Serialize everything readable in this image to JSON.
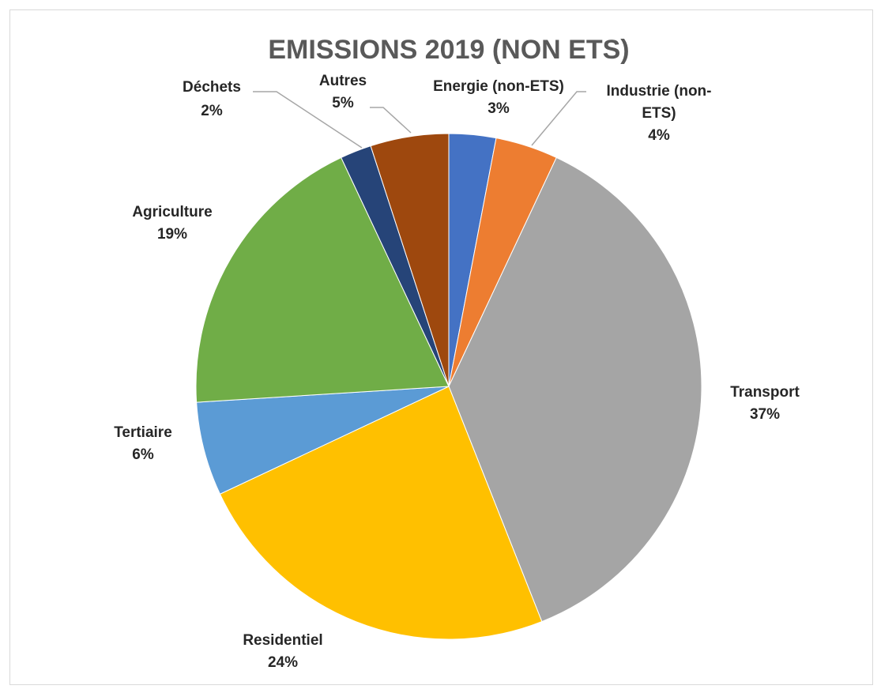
{
  "chart_data": {
    "type": "pie",
    "title": "EMISSIONS 2019 (NON ETS)",
    "slices": [
      {
        "name": "Energie (non-ETS)",
        "value": 3,
        "label": "3%",
        "color": "#4472C4"
      },
      {
        "name": "Industrie (non-ETS)",
        "value": 4,
        "label": "4%",
        "color": "#ED7D31"
      },
      {
        "name": "Transport",
        "value": 37,
        "label": "37%",
        "color": "#A5A5A5"
      },
      {
        "name": "Residentiel",
        "value": 24,
        "label": "24%",
        "color": "#FFC000"
      },
      {
        "name": "Tertiaire",
        "value": 6,
        "label": "6%",
        "color": "#5B9BD5"
      },
      {
        "name": "Agriculture",
        "value": 19,
        "label": "19%",
        "color": "#70AD47"
      },
      {
        "name": "Déchets",
        "value": 2,
        "label": "2%",
        "color": "#264478"
      },
      {
        "name": "Autres",
        "value": 5,
        "label": "5%",
        "color": "#9E480E"
      }
    ],
    "start_angle": "12 o'clock",
    "direction": "clockwise",
    "legend": "none"
  },
  "labels": {
    "energie": {
      "line1": "Energie (non-ETS)",
      "pct": "3%"
    },
    "industrie": {
      "line1": "Industrie (non-",
      "line2": "ETS)",
      "pct": "4%"
    },
    "transport": {
      "line1": "Transport",
      "pct": "37%"
    },
    "residentiel": {
      "line1": "Residentiel",
      "pct": "24%"
    },
    "tertiaire": {
      "line1": "Tertiaire",
      "pct": "6%"
    },
    "agriculture": {
      "line1": "Agriculture",
      "pct": "19%"
    },
    "dechets": {
      "line1": "Déchets",
      "pct": "2%"
    },
    "autres": {
      "line1": "Autres",
      "pct": "5%"
    }
  }
}
